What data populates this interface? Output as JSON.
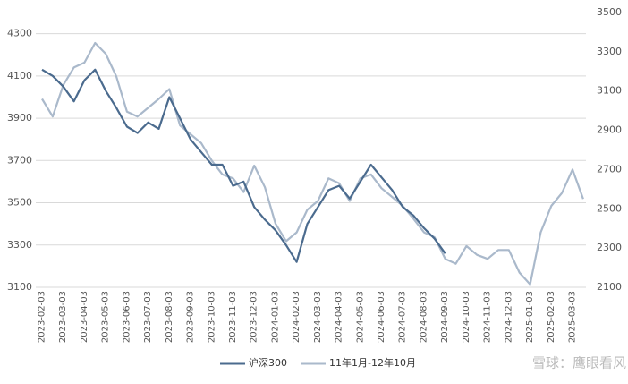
{
  "chart_data": {
    "type": "line",
    "categories": [
      "2023-02-03",
      null,
      "2023-03-03",
      null,
      "2023-04-03",
      null,
      "2023-05-03",
      null,
      "2023-06-03",
      null,
      "2023-07-03",
      null,
      "2023-08-03",
      null,
      "2023-09-03",
      null,
      "2023-10-03",
      null,
      "2023-11-03",
      null,
      "2023-12-03",
      null,
      "2024-01-03",
      null,
      "2024-02-03",
      null,
      "2024-03-03",
      null,
      "2024-04-03",
      null,
      "2024-05-03",
      null,
      "2024-06-03",
      null,
      "2024-07-03",
      null,
      "2024-08-03",
      null,
      "2024-09-03",
      null,
      "2024-10-03",
      null,
      "2024-11-03",
      null,
      "2024-12-03",
      null,
      "2025-01-03",
      null,
      "2025-02-03",
      null,
      "2025-03-03",
      null
    ],
    "series": [
      {
        "name": "沪深300",
        "color": "#4b6b8e",
        "values": [
          4130,
          4100,
          4050,
          3980,
          4080,
          4130,
          4030,
          3950,
          3860,
          3830,
          3880,
          3850,
          4000,
          3900,
          3800,
          3740,
          3680,
          3680,
          3580,
          3600,
          3480,
          3420,
          3370,
          3300,
          3220,
          3400,
          3480,
          3560,
          3580,
          3520,
          3600,
          3680,
          3620,
          3560,
          3480,
          3440,
          3380,
          3330,
          3260,
          null,
          null,
          null,
          null,
          null,
          null,
          null,
          null,
          null,
          null,
          null,
          null,
          null
        ]
      },
      {
        "name": "11年1月-12年10月",
        "color": "#aab9cb",
        "axis": "y2",
        "values": [
          3060,
          2970,
          3130,
          3220,
          3245,
          3345,
          3290,
          3175,
          2995,
          2970,
          3015,
          3060,
          3110,
          2925,
          2880,
          2835,
          2745,
          2675,
          2655,
          2585,
          2720,
          2610,
          2425,
          2335,
          2380,
          2495,
          2540,
          2655,
          2630,
          2540,
          2655,
          2675,
          2605,
          2560,
          2515,
          2450,
          2380,
          2355,
          2245,
          2220,
          2310,
          2265,
          2245,
          2290,
          2290,
          2175,
          2115,
          2380,
          2515,
          2580,
          2700,
          2550
        ]
      }
    ],
    "ylim": [
      3100,
      4400
    ],
    "yticks": [
      3100,
      3300,
      3500,
      3700,
      3900,
      4100,
      4300
    ],
    "y2lim": [
      2100,
      3500
    ],
    "y2ticks": [
      2100,
      2300,
      2500,
      2700,
      2900,
      3100,
      3300,
      3500
    ],
    "grid": true,
    "legend": "bottom",
    "watermark": "雪球：鹰眼看风"
  }
}
